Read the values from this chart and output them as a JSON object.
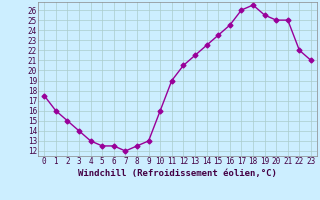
{
  "x": [
    0,
    1,
    2,
    3,
    4,
    5,
    6,
    7,
    8,
    9,
    10,
    11,
    12,
    13,
    14,
    15,
    16,
    17,
    18,
    19,
    20,
    21,
    22,
    23
  ],
  "y": [
    17.5,
    16.0,
    15.0,
    14.0,
    13.0,
    12.5,
    12.5,
    12.0,
    12.5,
    13.0,
    16.0,
    19.0,
    20.5,
    21.5,
    22.5,
    23.5,
    24.5,
    26.0,
    26.5,
    25.5,
    25.0,
    25.0,
    22.0,
    21.0
  ],
  "line_color": "#990099",
  "marker": "D",
  "markersize": 2.5,
  "linewidth": 1.0,
  "bg_color": "#cceeff",
  "grid_color": "#aacccc",
  "xlabel": "Windchill (Refroidissement éolien,°C)",
  "xlabel_fontsize": 6.5,
  "ytick_min": 12,
  "ytick_max": 26,
  "ytick_step": 1,
  "xtick_labels": [
    "0",
    "1",
    "2",
    "3",
    "4",
    "5",
    "6",
    "7",
    "8",
    "9",
    "10",
    "11",
    "12",
    "13",
    "14",
    "15",
    "16",
    "17",
    "18",
    "19",
    "20",
    "21",
    "22",
    "23"
  ],
  "tick_fontsize": 5.5,
  "ylim_min": 11.5,
  "ylim_max": 26.8,
  "xlim_min": -0.5,
  "xlim_max": 23.5
}
